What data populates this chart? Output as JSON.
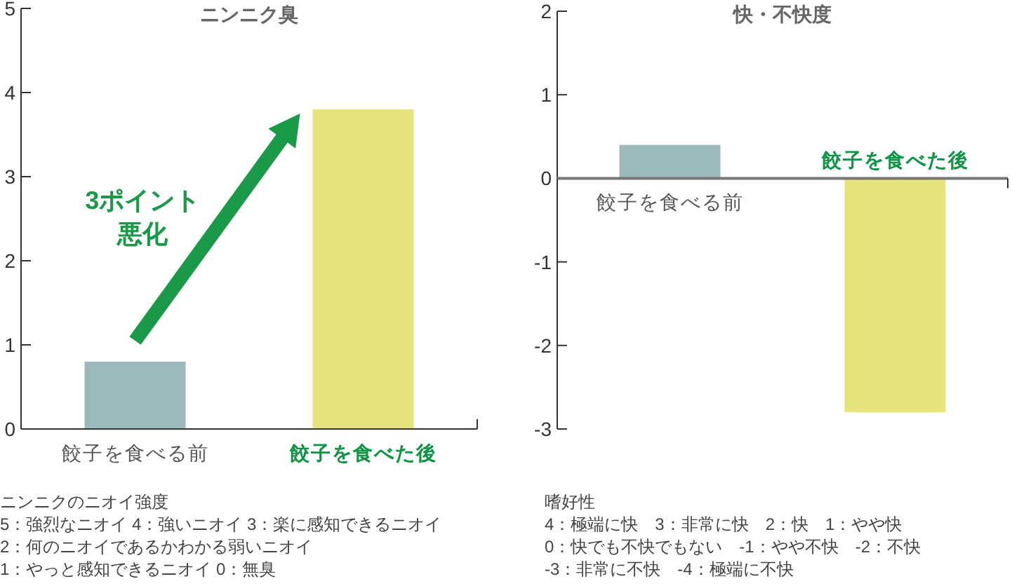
{
  "chart_data": [
    {
      "type": "bar",
      "title": "ニンニク臭",
      "categories": [
        "餃子を食べる前",
        "餃子を食べた後"
      ],
      "values": [
        0.8,
        3.8
      ],
      "colors": [
        "#9bb9ba",
        "#e5e47d"
      ],
      "ylim": [
        0,
        5
      ],
      "yticks": [
        0,
        1,
        2,
        3,
        4,
        5
      ],
      "annotations": [
        "3ポイント",
        "悪化",
        "ニンニクのニオイ強度\n5：強烈なニオイ 4：強いニオイ 3：楽に感知できるニオイ\n2：何のニオイであるかわかる弱いニオイ\n1：やっと感知できるニオイ 0：無臭"
      ]
    },
    {
      "type": "bar",
      "title": "快・不快度",
      "categories": [
        "餃子を食べる前",
        "餃子を食べた後"
      ],
      "values": [
        0.4,
        -2.8
      ],
      "colors": [
        "#9bb9ba",
        "#e5e47d"
      ],
      "ylim": [
        -3,
        2
      ],
      "yticks": [
        -3,
        -2,
        -1,
        0,
        1,
        2
      ],
      "annotations": [
        "嗜好性\n4：極端に快　3：非常に快　2：快　1：やや快\n0：快でも不快でもない　-1：やや不快　-2：不快\n-3：非常に不快　-4：極端に不快"
      ]
    }
  ]
}
